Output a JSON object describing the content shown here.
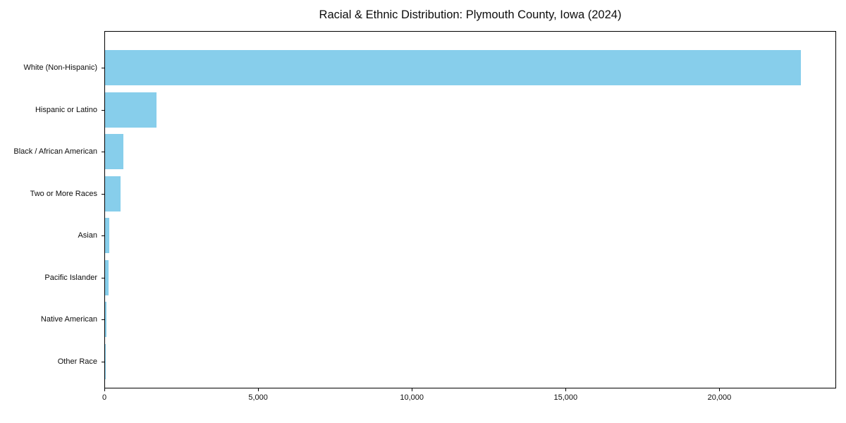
{
  "chart_data": {
    "type": "bar",
    "orientation": "horizontal",
    "title": "Racial & Ethnic Distribution: Plymouth County, Iowa (2024)",
    "categories": [
      "White (Non-Hispanic)",
      "Hispanic or Latino",
      "Black / African American",
      "Two or More Races",
      "Asian",
      "Pacific Islander",
      "Native American",
      "Other Race"
    ],
    "values": [
      22640,
      1670,
      595,
      510,
      135,
      115,
      50,
      10
    ],
    "xlabel": "",
    "ylabel": "",
    "xlim": [
      0,
      23772
    ],
    "xticks": [
      {
        "value": 0,
        "label": "0"
      },
      {
        "value": 5000,
        "label": "5,000"
      },
      {
        "value": 10000,
        "label": "10,000"
      },
      {
        "value": 15000,
        "label": "15,000"
      },
      {
        "value": 20000,
        "label": "20,000"
      }
    ],
    "bar_color": "#87CEEB",
    "axis_color": "#000000",
    "text_color": "#0d0d0d",
    "background_color": "#ffffff",
    "grid": false,
    "legend": "none"
  }
}
